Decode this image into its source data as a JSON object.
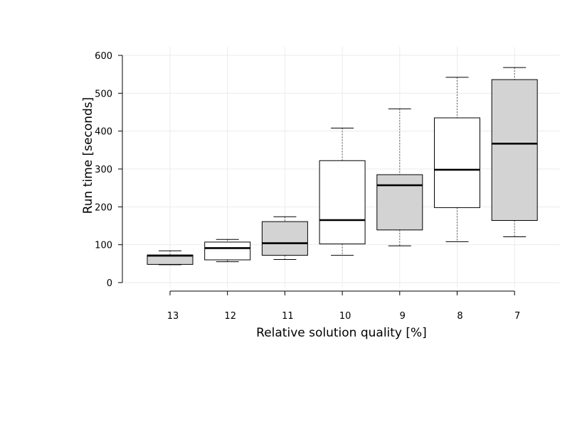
{
  "chart_data": {
    "type": "box",
    "xlabel": "Relative solution quality [%]",
    "ylabel": "Run time [seconds]",
    "ylim": [
      -10,
      610
    ],
    "yticks": [
      0,
      100,
      200,
      300,
      400,
      500,
      600
    ],
    "grid": true,
    "categories": [
      "13",
      "12",
      "11",
      "10",
      "9",
      "8",
      "7"
    ],
    "boxes": [
      {
        "category": "13",
        "min": 47,
        "q1": 48,
        "median": 71,
        "q3": 73,
        "max": 84,
        "fill": "#d3d3d3"
      },
      {
        "category": "12",
        "min": 55,
        "q1": 60,
        "median": 91,
        "q3": 107,
        "max": 114,
        "fill": "#ffffff"
      },
      {
        "category": "11",
        "min": 61,
        "q1": 72,
        "median": 104,
        "q3": 161,
        "max": 174,
        "fill": "#d3d3d3"
      },
      {
        "category": "10",
        "min": 72,
        "q1": 102,
        "median": 165,
        "q3": 322,
        "max": 408,
        "fill": "#ffffff"
      },
      {
        "category": "9",
        "min": 97,
        "q1": 139,
        "median": 257,
        "q3": 285,
        "max": 459,
        "fill": "#d3d3d3"
      },
      {
        "category": "8",
        "min": 108,
        "q1": 198,
        "median": 298,
        "q3": 435,
        "max": 542,
        "fill": "#ffffff"
      },
      {
        "category": "7",
        "min": 121,
        "q1": 164,
        "median": 367,
        "q3": 536,
        "max": 568,
        "fill": "#d3d3d3"
      }
    ]
  }
}
